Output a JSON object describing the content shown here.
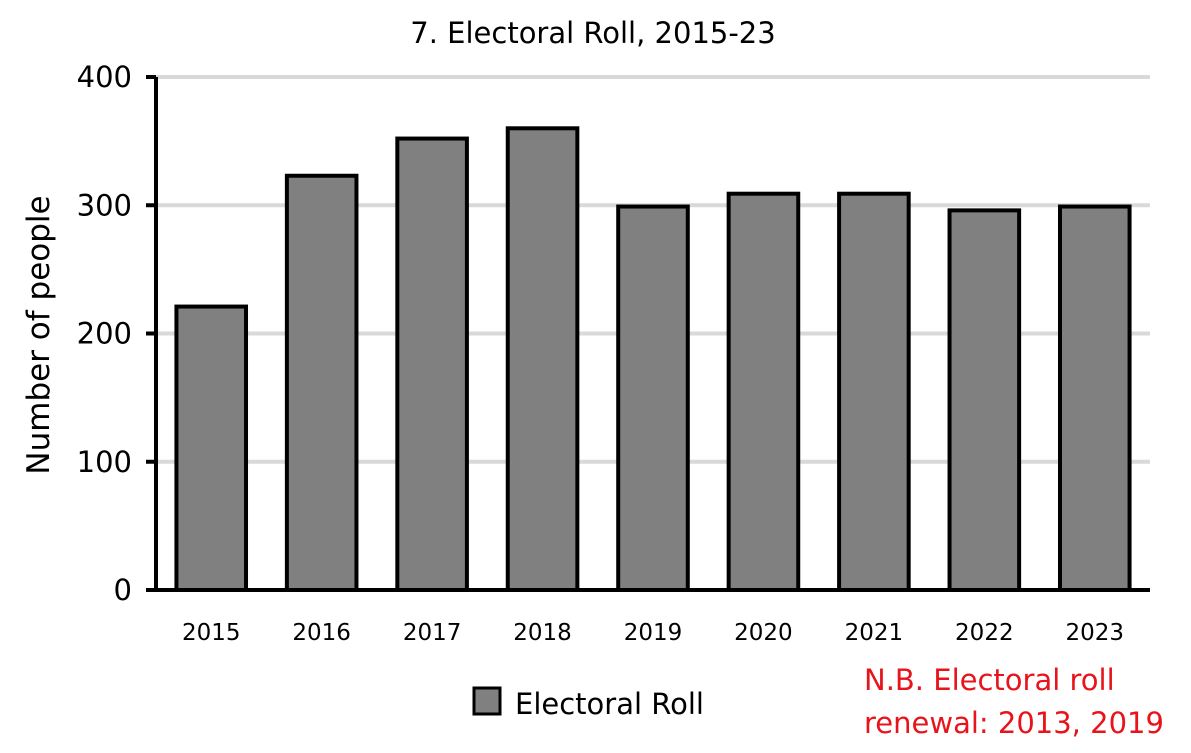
{
  "chart_data": {
    "type": "bar",
    "title": "7. Electoral Roll, 2015-23",
    "xlabel": "",
    "ylabel": "Number of people",
    "categories": [
      "2015",
      "2016",
      "2017",
      "2018",
      "2019",
      "2020",
      "2021",
      "2022",
      "2023"
    ],
    "series": [
      {
        "name": "Electoral Roll",
        "values": [
          221,
          323,
          352,
          360,
          299,
          309,
          309,
          296,
          299
        ],
        "color": "#808080"
      }
    ],
    "ylim": [
      0,
      400
    ],
    "yticks": [
      0,
      100,
      200,
      300,
      400
    ],
    "grid": true,
    "legend_placement": "bottom",
    "annotation": {
      "line1": "N.B. Electoral roll",
      "line2": "renewal: 2013, 2019",
      "color": "#e8141c"
    }
  }
}
